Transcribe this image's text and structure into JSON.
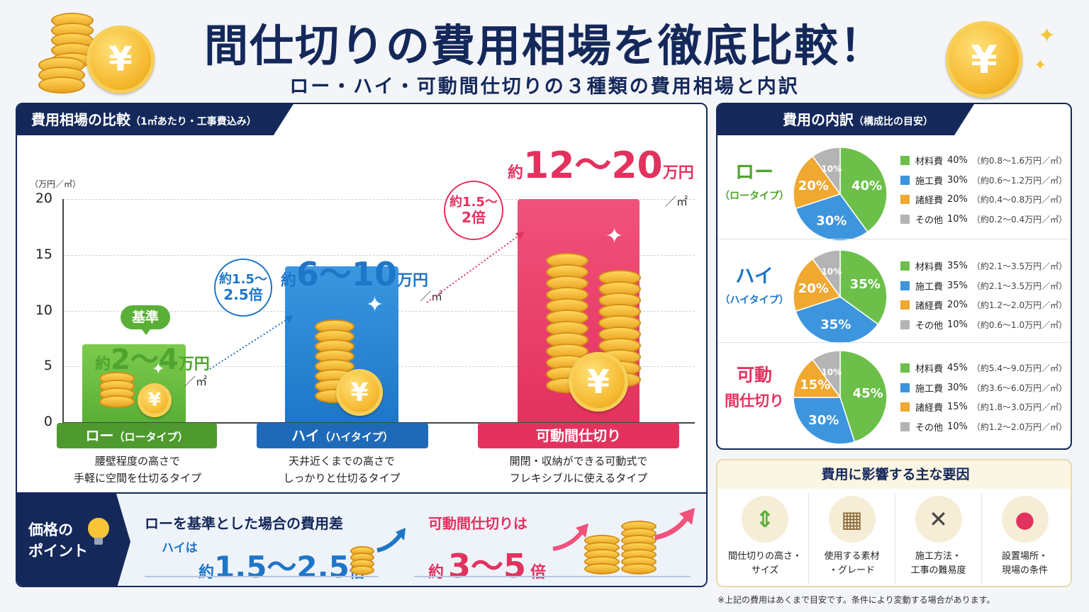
{
  "header": {
    "title": "間仕切りの費用相場を徹底比較！",
    "subtitle": "ロー・ハイ・可動間仕切りの３種類の費用相場と内訳",
    "coin_symbol": "¥"
  },
  "comparison": {
    "tab_title": "費用相場の比較",
    "tab_note": "（1㎡あたり・工事費込み）",
    "y_unit": "（万円／㎡）",
    "baseline_badge": "基準",
    "per_unit": "／㎡",
    "chart_data": {
      "type": "bar",
      "categories": [
        "ロー",
        "ハイ",
        "可動間仕切り"
      ],
      "y_ticks": [
        "0",
        "5",
        "10",
        "15",
        "20"
      ],
      "ylim": [
        0,
        20
      ],
      "grid": true,
      "series": [
        {
          "values_min": [
            2,
            6,
            12
          ],
          "values_max": [
            4,
            10,
            20
          ]
        }
      ],
      "bar_tops": [
        7,
        14,
        20
      ],
      "colors": [
        "#5aaf36",
        "#1e76c8",
        "#e3325e"
      ]
    },
    "price_labels": [
      {
        "prefix": "約",
        "range": "2～4",
        "unit": "万円"
      },
      {
        "prefix": "約",
        "range": "6～10",
        "unit": "万円"
      },
      {
        "prefix": "約",
        "range": "12～20",
        "unit": "万円"
      }
    ],
    "multipliers": [
      {
        "line1": "約1.5～",
        "line2": "2.5倍"
      },
      {
        "line1": "約1.5～",
        "line2": "2倍"
      }
    ],
    "types": [
      {
        "name": "ロー",
        "sub": "（ロータイプ）",
        "desc1": "腰壁程度の高さで",
        "desc2": "手軽に空間を仕切るタイプ"
      },
      {
        "name": "ハイ",
        "sub": "（ハイタイプ）",
        "desc1": "天井近くまでの高さで",
        "desc2": "しっかりと仕切るタイプ"
      },
      {
        "name": "可動間仕切り",
        "sub": "",
        "desc1": "開閉・収納ができる可動式で",
        "desc2": "フレキシブルに使えるタイプ"
      }
    ]
  },
  "points": {
    "tab_line1": "価格の",
    "tab_line2": "ポイント",
    "head1": "ローを基準とした場合の費用差",
    "head1_sub": "ハイは",
    "value1_prefix": "約",
    "value1": "1.5～2.5",
    "value1_unit": "倍",
    "head2": "可動間仕切りは",
    "value2_prefix": "約",
    "value2": "3～5",
    "value2_unit": "倍"
  },
  "breakdown": {
    "tab_title": "費用の内訳",
    "tab_note": "（構成比の目安）",
    "colors": {
      "material": "#6cc04a",
      "construction": "#3d95dd",
      "overhead": "#f0a830",
      "other": "#b4b4b4"
    },
    "rows": [
      {
        "name": "ロー",
        "sub": "（ロータイプ）",
        "name_color": "#4ea42e",
        "slices": [
          40,
          30,
          20,
          10
        ],
        "slice_labels": [
          "40%",
          "30%",
          "20%",
          "10%"
        ],
        "legend": [
          {
            "label": "材料費",
            "pct": "40%",
            "range": "（約0.8～1.6万円／㎡）"
          },
          {
            "label": "施工費",
            "pct": "30%",
            "range": "（約0.6～1.2万円／㎡）"
          },
          {
            "label": "諸経費",
            "pct": "20%",
            "range": "（約0.4～0.8万円／㎡）"
          },
          {
            "label": "その他",
            "pct": "10%",
            "range": "（約0.2～0.4万円／㎡）"
          }
        ]
      },
      {
        "name": "ハイ",
        "sub": "（ハイタイプ）",
        "name_color": "#1e76c8",
        "slices": [
          35,
          35,
          20,
          10
        ],
        "slice_labels": [
          "35%",
          "35%",
          "20%",
          "10%"
        ],
        "legend": [
          {
            "label": "材料費",
            "pct": "35%",
            "range": "（約2.1～3.5万円／㎡）"
          },
          {
            "label": "施工費",
            "pct": "35%",
            "range": "（約2.1～3.5万円／㎡）"
          },
          {
            "label": "諸経費",
            "pct": "20%",
            "range": "（約1.2～2.0万円／㎡）"
          },
          {
            "label": "その他",
            "pct": "10%",
            "range": "（約0.6～1.0万円／㎡）"
          }
        ]
      },
      {
        "name": "可動",
        "name2": "間仕切り",
        "sub": "",
        "name_color": "#e3325e",
        "slices": [
          45,
          30,
          15,
          10
        ],
        "slice_labels": [
          "45%",
          "30%",
          "15%",
          "10%"
        ],
        "legend": [
          {
            "label": "材料費",
            "pct": "45%",
            "range": "（約5.4～9.0万円／㎡）"
          },
          {
            "label": "施工費",
            "pct": "30%",
            "range": "（約3.6～6.0万円／㎡）"
          },
          {
            "label": "諸経費",
            "pct": "15%",
            "range": "（約1.8～3.0万円／㎡）"
          },
          {
            "label": "その他",
            "pct": "10%",
            "range": "（約1.2～2.0万円／㎡）"
          }
        ]
      }
    ]
  },
  "factors": {
    "title": "費用に影響する主な要因",
    "items": [
      {
        "icon": "height-arrows-icon",
        "glyph": "⇕",
        "line1": "間仕切りの高さ・",
        "line2": "サイズ"
      },
      {
        "icon": "material-grid-icon",
        "glyph": "▦",
        "line1": "使用する素材",
        "line2": "・グレード"
      },
      {
        "icon": "tools-icon",
        "glyph": "✕",
        "line1": "施工方法・",
        "line2": "工事の難易度"
      },
      {
        "icon": "map-pin-icon",
        "glyph": "●",
        "line1": "設置場所・",
        "line2": "現場の条件"
      }
    ]
  },
  "footnote": "※上記の費用はあくまで目安です。条件により変動する場合があります。"
}
